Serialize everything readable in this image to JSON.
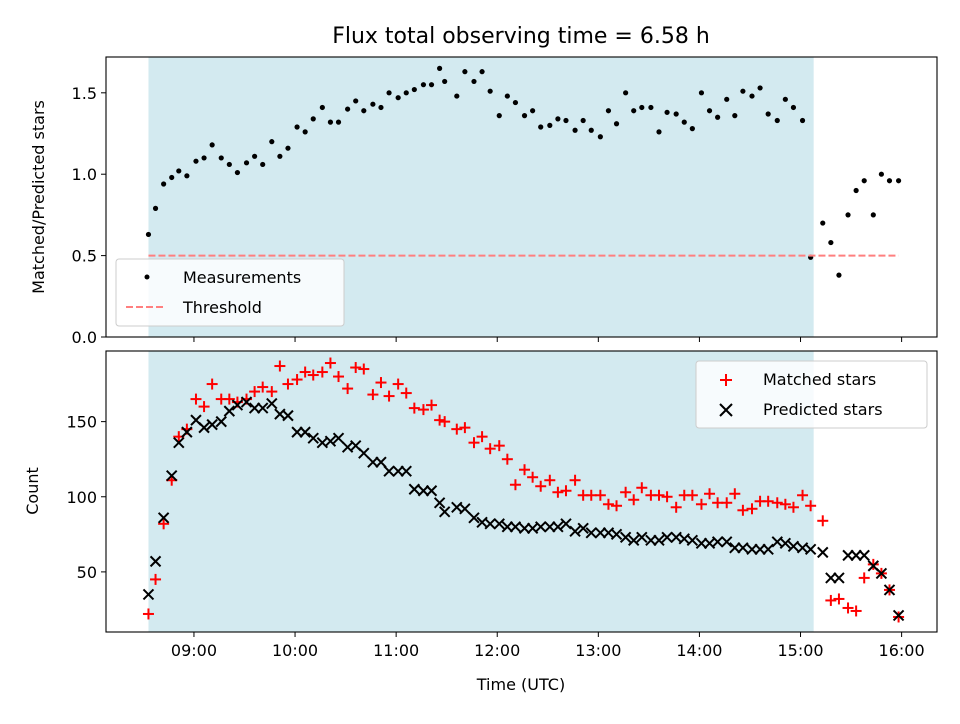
{
  "chart_data": [
    {
      "type": "scatter",
      "title": "Flux total observing time = 6.58 h",
      "xlabel": "",
      "ylabel": "Matched/Predicted stars",
      "xlim": [
        8.13,
        16.35
      ],
      "ylim": [
        0.0,
        1.72
      ],
      "yticks": [
        0.0,
        0.5,
        1.0,
        1.5
      ],
      "shaded_region": {
        "x_start": 8.55,
        "x_end": 15.13,
        "color": "#add8e6"
      },
      "legend_position": "lower left",
      "colors": {
        "measurements": "#000000",
        "threshold": "#ff7f7f",
        "shade": "#d3eaf0"
      },
      "series": [
        {
          "name": "Measurements",
          "style": "points",
          "x": [
            8.55,
            8.62,
            8.7,
            8.78,
            8.85,
            8.93,
            9.02,
            9.1,
            9.18,
            9.27,
            9.35,
            9.43,
            9.52,
            9.6,
            9.68,
            9.77,
            9.85,
            9.93,
            10.02,
            10.1,
            10.18,
            10.27,
            10.35,
            10.43,
            10.52,
            10.6,
            10.68,
            10.77,
            10.85,
            10.93,
            11.02,
            11.1,
            11.18,
            11.27,
            11.35,
            11.43,
            11.48,
            11.6,
            11.68,
            11.77,
            11.85,
            11.93,
            12.02,
            12.1,
            12.18,
            12.27,
            12.35,
            12.43,
            12.52,
            12.6,
            12.68,
            12.77,
            12.85,
            12.93,
            13.02,
            13.1,
            13.18,
            13.27,
            13.35,
            13.43,
            13.52,
            13.6,
            13.68,
            13.77,
            13.85,
            13.93,
            14.02,
            14.1,
            14.18,
            14.27,
            14.35,
            14.43,
            14.52,
            14.6,
            14.68,
            14.77,
            14.85,
            14.93,
            15.02,
            15.1,
            15.22,
            15.3,
            15.38,
            15.47,
            15.55,
            15.63,
            15.72,
            15.8,
            15.88,
            15.97
          ],
          "y": [
            0.63,
            0.79,
            0.94,
            0.98,
            1.02,
            0.99,
            1.08,
            1.1,
            1.18,
            1.1,
            1.06,
            1.01,
            1.07,
            1.11,
            1.06,
            1.2,
            1.11,
            1.16,
            1.29,
            1.26,
            1.34,
            1.41,
            1.32,
            1.32,
            1.4,
            1.45,
            1.39,
            1.43,
            1.41,
            1.5,
            1.47,
            1.5,
            1.52,
            1.55,
            1.55,
            1.65,
            1.57,
            1.48,
            1.63,
            1.57,
            1.63,
            1.51,
            1.36,
            1.48,
            1.44,
            1.36,
            1.39,
            1.29,
            1.3,
            1.34,
            1.33,
            1.27,
            1.33,
            1.27,
            1.23,
            1.39,
            1.31,
            1.5,
            1.39,
            1.41,
            1.41,
            1.26,
            1.38,
            1.37,
            1.32,
            1.28,
            1.5,
            1.39,
            1.35,
            1.46,
            1.36,
            1.51,
            1.48,
            1.53,
            1.37,
            1.33,
            1.46,
            1.41,
            1.33,
            0.49,
            0.7,
            0.58,
            0.38,
            0.75,
            0.9,
            0.96,
            0.75,
            1.0,
            0.96,
            0.96
          ]
        },
        {
          "name": "Threshold",
          "style": "dashed-line",
          "x": [
            8.55,
            15.97
          ],
          "y": [
            0.5,
            0.5
          ]
        }
      ]
    },
    {
      "type": "scatter",
      "title": "",
      "xlabel": "Time (UTC)",
      "ylabel": "Count",
      "xlim": [
        8.13,
        16.35
      ],
      "ylim": [
        10,
        197
      ],
      "yticks": [
        50,
        100,
        150
      ],
      "xticks": [
        9,
        10,
        11,
        12,
        13,
        14,
        15,
        16
      ],
      "xticklabels": [
        "09:00",
        "10:00",
        "11:00",
        "12:00",
        "13:00",
        "14:00",
        "15:00",
        "16:00"
      ],
      "shaded_region": {
        "x_start": 8.55,
        "x_end": 15.13,
        "color": "#add8e6"
      },
      "legend_position": "upper right",
      "colors": {
        "matched": "#ff0000",
        "predicted": "#000000"
      },
      "series": [
        {
          "name": "Matched stars",
          "marker": "+",
          "x": [
            8.55,
            8.62,
            8.7,
            8.78,
            8.85,
            8.93,
            9.02,
            9.1,
            9.18,
            9.27,
            9.35,
            9.43,
            9.52,
            9.6,
            9.68,
            9.77,
            9.85,
            9.93,
            10.02,
            10.1,
            10.18,
            10.27,
            10.35,
            10.43,
            10.52,
            10.6,
            10.68,
            10.77,
            10.85,
            10.93,
            11.02,
            11.1,
            11.18,
            11.27,
            11.35,
            11.43,
            11.48,
            11.6,
            11.68,
            11.77,
            11.85,
            11.93,
            12.02,
            12.1,
            12.18,
            12.27,
            12.35,
            12.43,
            12.52,
            12.6,
            12.68,
            12.77,
            12.85,
            12.93,
            13.02,
            13.1,
            13.18,
            13.27,
            13.35,
            13.43,
            13.52,
            13.6,
            13.68,
            13.77,
            13.85,
            13.93,
            14.02,
            14.1,
            14.18,
            14.27,
            14.35,
            14.43,
            14.52,
            14.6,
            14.68,
            14.77,
            14.85,
            14.93,
            15.02,
            15.1,
            15.22,
            15.3,
            15.38,
            15.47,
            15.55,
            15.63,
            15.72,
            15.8,
            15.88,
            15.97
          ],
          "y": [
            22,
            45,
            82,
            111,
            140,
            145,
            165,
            160,
            175,
            165,
            165,
            163,
            165,
            170,
            173,
            170,
            187,
            175,
            178,
            183,
            181,
            183,
            189,
            180,
            172,
            186,
            185,
            168,
            176,
            167,
            175,
            169,
            159,
            158,
            161,
            151,
            150,
            145,
            146,
            136,
            140,
            132,
            134,
            125,
            108,
            118,
            113,
            107,
            111,
            103,
            104,
            111,
            101,
            101,
            101,
            95,
            94,
            103,
            98,
            106,
            101,
            101,
            100,
            93,
            101,
            101,
            95,
            102,
            96,
            96,
            102,
            91,
            92,
            97,
            97,
            96,
            95,
            93,
            101,
            94,
            84,
            31,
            32,
            26,
            24,
            46,
            55,
            49,
            38,
            20
          ]
        },
        {
          "name": "Predicted stars",
          "marker": "x",
          "x": [
            8.55,
            8.62,
            8.7,
            8.78,
            8.85,
            8.93,
            9.02,
            9.1,
            9.18,
            9.27,
            9.35,
            9.43,
            9.52,
            9.6,
            9.68,
            9.77,
            9.85,
            9.93,
            10.02,
            10.1,
            10.18,
            10.27,
            10.35,
            10.43,
            10.52,
            10.6,
            10.68,
            10.77,
            10.85,
            10.93,
            11.02,
            11.1,
            11.18,
            11.27,
            11.35,
            11.43,
            11.48,
            11.6,
            11.68,
            11.77,
            11.85,
            11.93,
            12.02,
            12.1,
            12.18,
            12.27,
            12.35,
            12.43,
            12.52,
            12.6,
            12.68,
            12.77,
            12.85,
            12.93,
            13.02,
            13.1,
            13.18,
            13.27,
            13.35,
            13.43,
            13.52,
            13.6,
            13.68,
            13.77,
            13.85,
            13.93,
            14.02,
            14.1,
            14.18,
            14.27,
            14.35,
            14.43,
            14.52,
            14.6,
            14.68,
            14.77,
            14.85,
            14.93,
            15.02,
            15.1,
            15.22,
            15.3,
            15.38,
            15.47,
            15.55,
            15.63,
            15.72,
            15.8,
            15.88,
            15.97
          ],
          "y": [
            35,
            57,
            86,
            114,
            136,
            143,
            151,
            146,
            148,
            150,
            157,
            161,
            163,
            159,
            159,
            162,
            155,
            154,
            143,
            143,
            139,
            136,
            137,
            139,
            133,
            134,
            129,
            123,
            123,
            117,
            117,
            117,
            105,
            104,
            104,
            96,
            90,
            93,
            92,
            86,
            83,
            82,
            82,
            80,
            80,
            79,
            79,
            80,
            80,
            80,
            82,
            77,
            79,
            76,
            76,
            76,
            75,
            73,
            71,
            73,
            71,
            71,
            73,
            73,
            72,
            71,
            69,
            69,
            70,
            70,
            66,
            66,
            65,
            65,
            65,
            70,
            69,
            67,
            66,
            65,
            63,
            46,
            46,
            61,
            61,
            61,
            54,
            49,
            38,
            21
          ]
        }
      ]
    }
  ]
}
